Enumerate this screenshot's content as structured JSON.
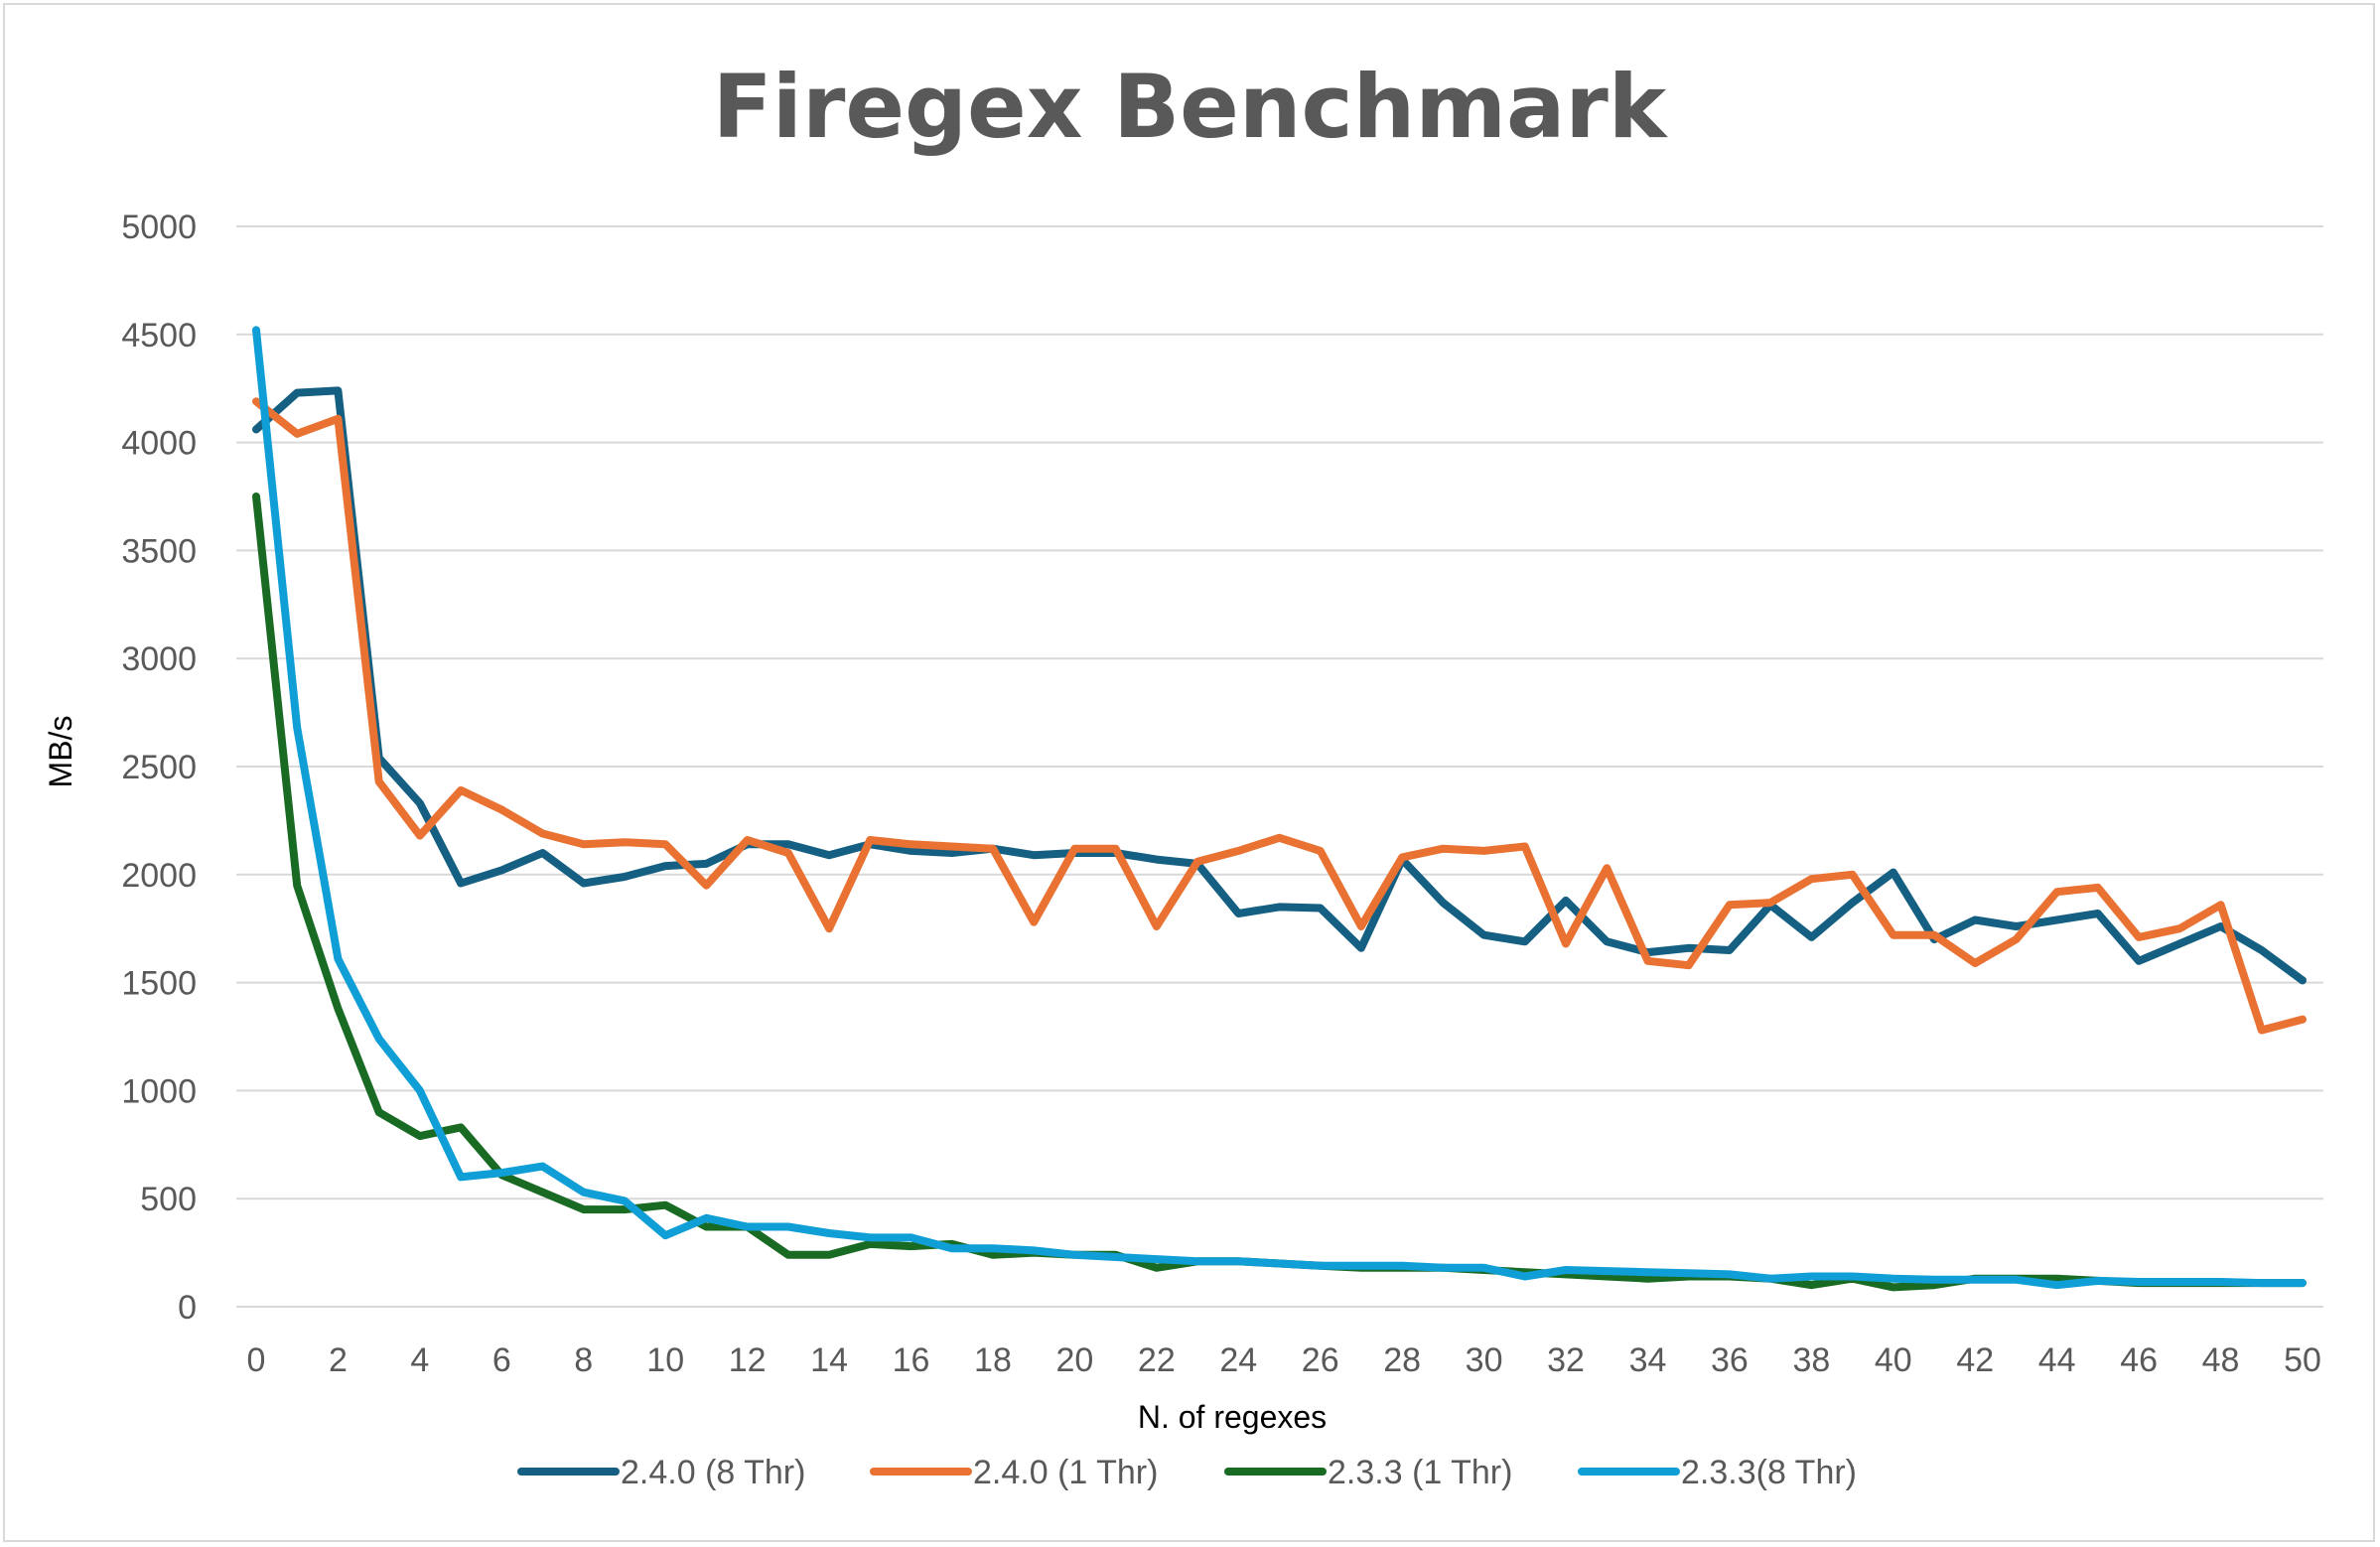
{
  "chart_data": {
    "type": "line",
    "title": "Firegex Benchmark",
    "xlabel": "N. of regexes",
    "ylabel": "MB/s",
    "xlim": [
      0,
      50
    ],
    "ylim": [
      0,
      5000
    ],
    "y_ticks": [
      0,
      500,
      1000,
      1500,
      2000,
      2500,
      3000,
      3500,
      4000,
      4500,
      5000
    ],
    "x_ticks": [
      0,
      2,
      4,
      6,
      8,
      10,
      12,
      14,
      16,
      18,
      20,
      22,
      24,
      26,
      28,
      30,
      32,
      34,
      36,
      38,
      40,
      42,
      44,
      46,
      48,
      50
    ],
    "grid": "horizontal",
    "legend_position": "bottom",
    "x": [
      0,
      1,
      2,
      3,
      4,
      5,
      6,
      7,
      8,
      9,
      10,
      11,
      12,
      13,
      14,
      15,
      16,
      17,
      18,
      19,
      20,
      21,
      22,
      23,
      24,
      25,
      26,
      27,
      28,
      29,
      30,
      31,
      32,
      33,
      34,
      35,
      36,
      37,
      38,
      39,
      40,
      41,
      42,
      43,
      44,
      45,
      46,
      47,
      48,
      49,
      50
    ],
    "series": [
      {
        "name": "2.4.0 (8 Thr)",
        "color": "#156082",
        "values": [
          4060,
          4230,
          4240,
          2540,
          2330,
          1960,
          2020,
          2100,
          1960,
          1990,
          2040,
          2050,
          2140,
          2140,
          2090,
          2140,
          2110,
          2100,
          2120,
          2090,
          2100,
          2100,
          2070,
          2050,
          1820,
          1850,
          1845,
          1660,
          2070,
          1870,
          1720,
          1690,
          1880,
          1690,
          1640,
          1660,
          1650,
          1860,
          1710,
          1870,
          2010,
          1700,
          1790,
          1760,
          1790,
          1820,
          1600,
          1680,
          1760,
          1650,
          1510
        ]
      },
      {
        "name": "2.4.0 (1 Thr)",
        "color": "#E97132",
        "values": [
          4190,
          4040,
          4110,
          2430,
          2180,
          2390,
          2300,
          2190,
          2140,
          2150,
          2140,
          1950,
          2160,
          2100,
          1750,
          2160,
          2140,
          2130,
          2120,
          1780,
          2120,
          2120,
          1760,
          2060,
          2110,
          2170,
          2110,
          1760,
          2080,
          2120,
          2110,
          2130,
          1680,
          2030,
          1600,
          1580,
          1860,
          1870,
          1980,
          2000,
          1720,
          1720,
          1590,
          1700,
          1920,
          1940,
          1710,
          1750,
          1860,
          1280,
          1330
        ]
      },
      {
        "name": "2.3.3 (1 Thr)",
        "color": "#196B24",
        "values": [
          3750,
          1950,
          1380,
          900,
          790,
          830,
          610,
          530,
          450,
          450,
          470,
          370,
          370,
          240,
          240,
          290,
          280,
          290,
          240,
          250,
          240,
          240,
          180,
          210,
          210,
          200,
          190,
          180,
          180,
          180,
          170,
          160,
          150,
          140,
          130,
          140,
          140,
          130,
          100,
          130,
          90,
          100,
          130,
          130,
          130,
          120,
          110,
          110,
          110,
          110,
          110
        ]
      },
      {
        "name": "2.3.3(8 Thr)",
        "color": "#0F9ED5",
        "values": [
          4520,
          2680,
          1610,
          1240,
          1000,
          600,
          620,
          650,
          530,
          490,
          330,
          410,
          370,
          370,
          340,
          320,
          320,
          270,
          270,
          260,
          240,
          230,
          220,
          210,
          210,
          200,
          190,
          190,
          190,
          180,
          180,
          140,
          170,
          165,
          160,
          155,
          150,
          130,
          140,
          140,
          130,
          125,
          125,
          125,
          100,
          120,
          115,
          115,
          115,
          110,
          110
        ]
      }
    ]
  }
}
